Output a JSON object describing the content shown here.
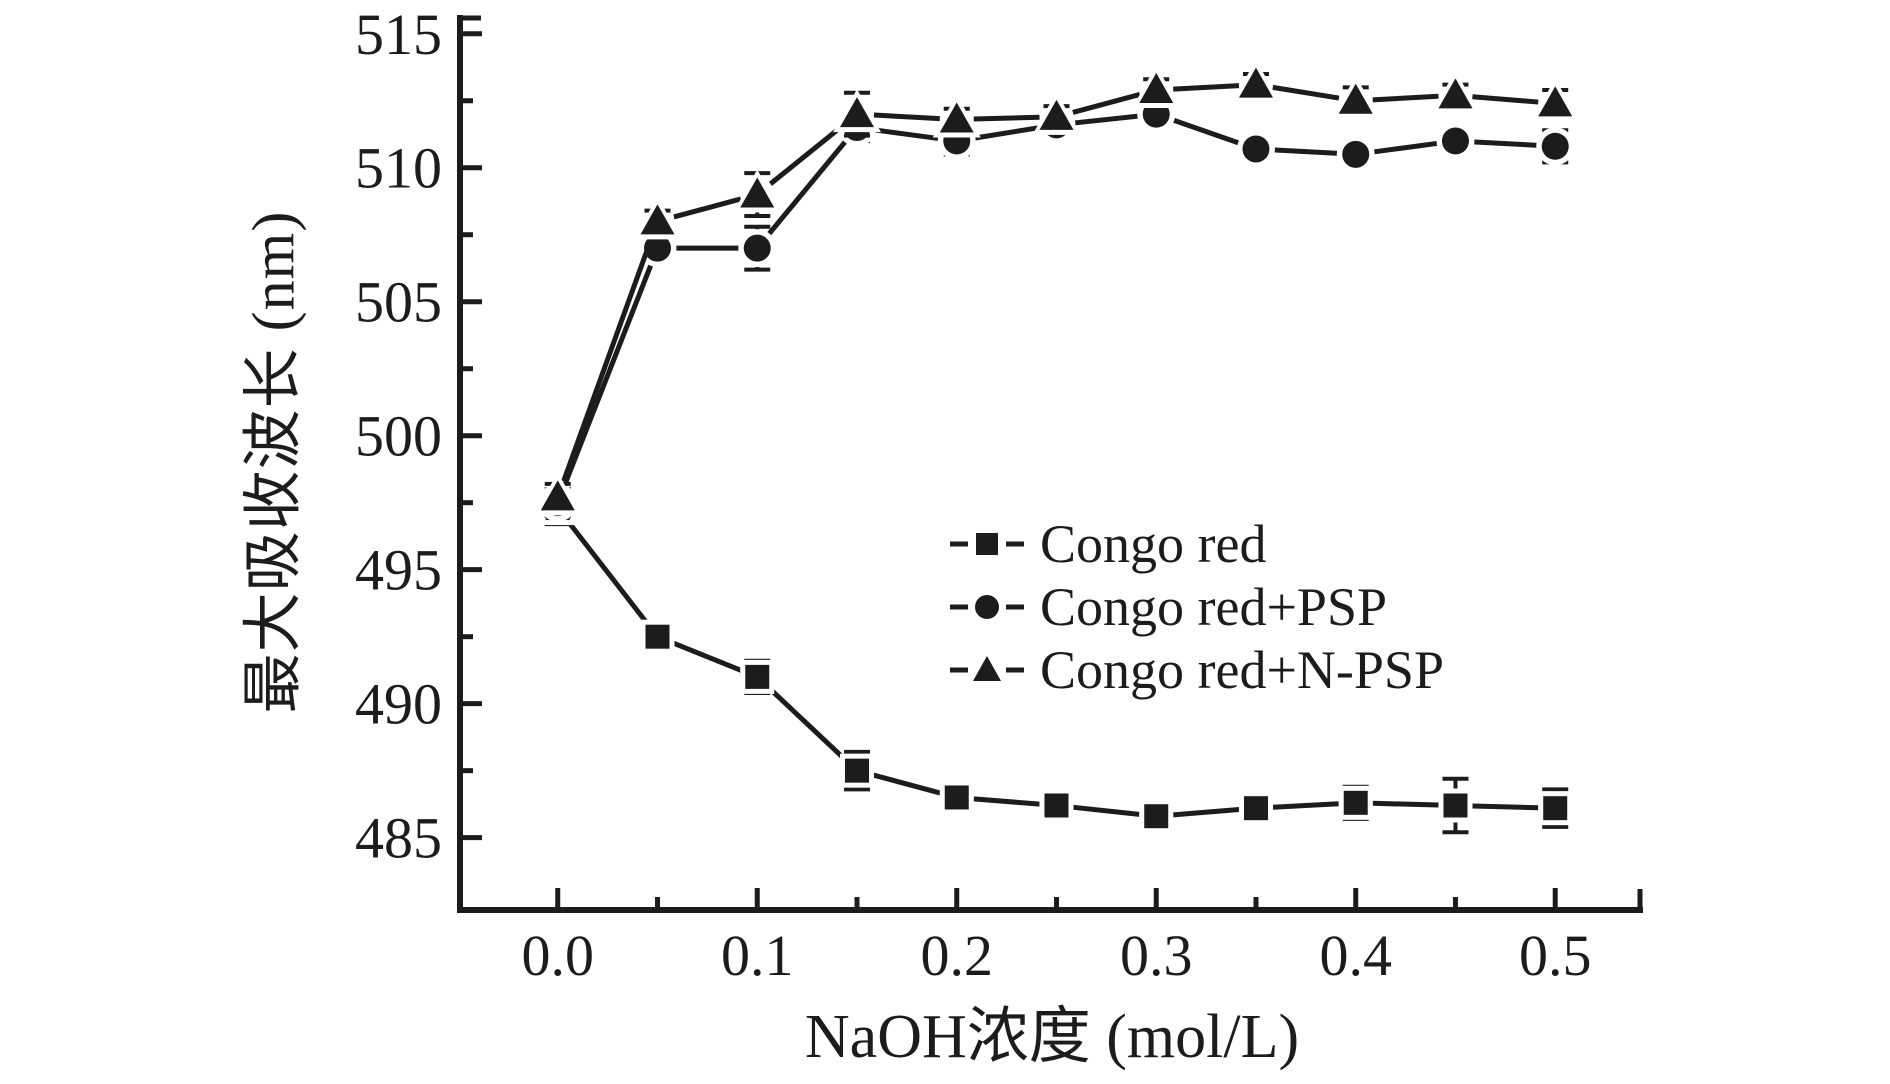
{
  "chart_data": {
    "type": "line",
    "title": "",
    "xlabel": "NaOH浓度 (mol/L)",
    "ylabel": "最大吸收波长 (nm)",
    "x": [
      0.0,
      0.05,
      0.1,
      0.15,
      0.2,
      0.25,
      0.3,
      0.35,
      0.4,
      0.45,
      0.5
    ],
    "series": [
      {
        "name": "Congo red",
        "marker": "square",
        "values": [
          497.3,
          492.5,
          491.0,
          487.5,
          486.5,
          486.2,
          485.8,
          486.1,
          486.3,
          486.2,
          486.1
        ],
        "errors": [
          0.6,
          0.5,
          0.6,
          0.7,
          0.5,
          0.5,
          0.5,
          0.5,
          0.6,
          1.0,
          0.7
        ]
      },
      {
        "name": "Congo red+PSP",
        "marker": "circle",
        "values": [
          497.5,
          507.0,
          507.0,
          511.5,
          511.0,
          511.6,
          512.0,
          510.7,
          510.5,
          511.0,
          510.8
        ],
        "errors": [
          0.5,
          0.4,
          0.8,
          0.5,
          0.5,
          0.4,
          0.3,
          0.4,
          0.4,
          0.4,
          0.6
        ]
      },
      {
        "name": "Congo red+N-PSP",
        "marker": "triangle",
        "values": [
          497.7,
          508.0,
          509.0,
          512.0,
          511.8,
          511.9,
          512.9,
          513.1,
          512.5,
          512.7,
          512.4
        ],
        "errors": [
          0.5,
          0.4,
          0.8,
          0.8,
          0.4,
          0.4,
          0.4,
          0.4,
          0.5,
          0.4,
          0.5
        ]
      }
    ],
    "xlim": [
      -0.049,
      0.544
    ],
    "ylim": [
      482.3,
      515.7
    ],
    "xticks_major": [
      0.0,
      0.1,
      0.2,
      0.3,
      0.4,
      0.5
    ],
    "xtick_labels": [
      "0.0",
      "0.1",
      "0.2",
      "0.3",
      "0.4",
      "0.5"
    ],
    "xticks_minor": [
      0.05,
      0.15,
      0.25,
      0.35,
      0.45
    ],
    "yticks_major": [
      485,
      490,
      495,
      500,
      505,
      510,
      515
    ],
    "ytick_labels": [
      "485",
      "490",
      "495",
      "500",
      "505",
      "510",
      "515"
    ],
    "yticks_minor": [
      487.5,
      492.5,
      497.5,
      502.5,
      507.5,
      512.5
    ],
    "grid": false,
    "legend_position": "inside-center-right",
    "line_color": "#1c1c1c",
    "background": "#ffffff"
  }
}
